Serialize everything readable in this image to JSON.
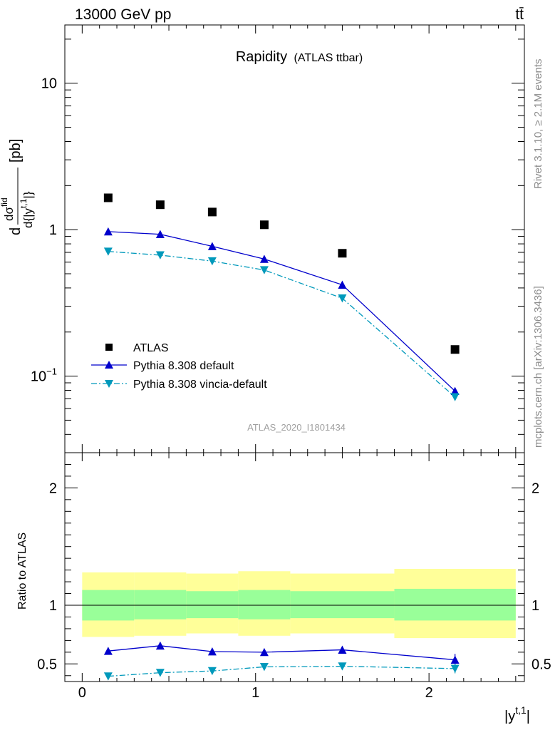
{
  "header": {
    "left": "13000 GeV pp",
    "right": "tt̄"
  },
  "side_labels": {
    "rivet": "Rivet 3.1.10, ≥ 2.1M events",
    "mcplots": "mcplots.cern.ch [arXiv:1306.3436]"
  },
  "watermark": "ATLAS_2020_I1801434",
  "colors": {
    "atlas": "#000000",
    "pythia_default": "#0000cc",
    "pythia_vincia": "#0099bb",
    "band_outer": "#ffff99",
    "band_inner": "#99ff99"
  },
  "chart_data": [
    {
      "type": "scatter",
      "title": "Rapidity",
      "title_suffix": "(ATLAS ttbar)",
      "ylabel": "dσ^fid / d{|y^t,1|} [pb]",
      "ylabel_parts": {
        "d": "d",
        "sigma": "dσ",
        "fid": "fid",
        "den": "d{|y",
        "t1": "t,1",
        "close": "|}",
        "unit": " [pb]"
      },
      "yscale": "log",
      "xlim": [
        -0.1,
        2.55
      ],
      "ylim": [
        0.03,
        25
      ],
      "y_ticks": [
        {
          "value": 0.1,
          "label": "10",
          "exp": "−1"
        },
        {
          "value": 1,
          "label": "1",
          "exp": ""
        },
        {
          "value": 10,
          "label": "10",
          "exp": ""
        }
      ],
      "legend_position": "bottom-left",
      "series": [
        {
          "name": "ATLAS",
          "key": "atlas",
          "marker": "square",
          "x": [
            0.15,
            0.45,
            0.75,
            1.05,
            1.5,
            2.15
          ],
          "y": [
            1.65,
            1.48,
            1.32,
            1.08,
            0.69,
            0.152
          ]
        },
        {
          "name": "Pythia 8.308 default",
          "key": "pythia_default",
          "marker": "triangle-up",
          "line": "solid",
          "x": [
            0.15,
            0.45,
            0.75,
            1.05,
            1.5,
            2.15
          ],
          "y": [
            0.97,
            0.93,
            0.77,
            0.63,
            0.42,
            0.079
          ]
        },
        {
          "name": "Pythia 8.308 vincia-default",
          "key": "pythia_vincia",
          "marker": "triangle-down",
          "line": "dashdot",
          "x": [
            0.15,
            0.45,
            0.75,
            1.05,
            1.5,
            2.15
          ],
          "y": [
            0.71,
            0.67,
            0.61,
            0.53,
            0.34,
            0.072
          ]
        }
      ]
    },
    {
      "type": "scatter",
      "ylabel": "Ratio to ATLAS",
      "xlabel": "|y^t,1|",
      "xlabel_parts": {
        "base": "|y",
        "sup": "t,1",
        "close": "|"
      },
      "xlim": [
        -0.1,
        2.55
      ],
      "ylim": [
        0.35,
        2.3
      ],
      "x_ticks": [
        {
          "value": 0,
          "label": "0"
        },
        {
          "value": 1,
          "label": "1"
        },
        {
          "value": 2,
          "label": "2"
        }
      ],
      "y_ticks": [
        {
          "value": 0.5,
          "label": "0.5"
        },
        {
          "value": 1,
          "label": "1"
        },
        {
          "value": 2,
          "label": "2"
        }
      ],
      "reference_line": 1,
      "bands": [
        {
          "x0": 0.0,
          "x1": 0.3,
          "inner": [
            0.87,
            1.13
          ],
          "outer": [
            0.73,
            1.28
          ]
        },
        {
          "x0": 0.3,
          "x1": 0.6,
          "inner": [
            0.88,
            1.13
          ],
          "outer": [
            0.74,
            1.28
          ]
        },
        {
          "x0": 0.6,
          "x1": 0.9,
          "inner": [
            0.89,
            1.12
          ],
          "outer": [
            0.76,
            1.27
          ]
        },
        {
          "x0": 0.9,
          "x1": 1.2,
          "inner": [
            0.88,
            1.13
          ],
          "outer": [
            0.74,
            1.29
          ]
        },
        {
          "x0": 1.2,
          "x1": 1.8,
          "inner": [
            0.89,
            1.12
          ],
          "outer": [
            0.76,
            1.27
          ]
        },
        {
          "x0": 1.8,
          "x1": 2.5,
          "inner": [
            0.87,
            1.14
          ],
          "outer": [
            0.72,
            1.31
          ]
        }
      ],
      "series": [
        {
          "name": "Pythia 8.308 default",
          "key": "pythia_default",
          "marker": "triangle-up",
          "line": "solid",
          "x": [
            0.15,
            0.45,
            0.75,
            1.05,
            1.5,
            2.15
          ],
          "y": [
            0.61,
            0.655,
            0.605,
            0.6,
            0.62,
            0.535
          ],
          "err": [
            0.02,
            0.02,
            0.025,
            0.025,
            0.025,
            0.05
          ]
        },
        {
          "name": "Pythia 8.308 vincia-default",
          "key": "pythia_vincia",
          "marker": "triangle-down",
          "line": "dashdot",
          "x": [
            0.15,
            0.45,
            0.75,
            1.05,
            1.5,
            2.15
          ],
          "y": [
            0.395,
            0.425,
            0.44,
            0.475,
            0.48,
            0.46
          ],
          "err": [
            0.015,
            0.015,
            0.02,
            0.02,
            0.02,
            0.04
          ]
        }
      ]
    }
  ]
}
